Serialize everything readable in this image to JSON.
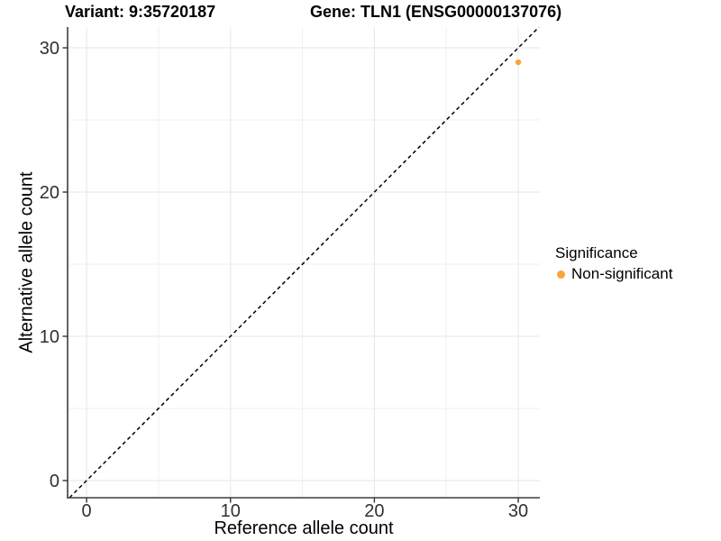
{
  "page": {
    "background": "#ffffff"
  },
  "header": {
    "title_left": "Variant: 9:35720187",
    "title_right": "Gene: TLN1 (ENSG00000137076)"
  },
  "chart_data": {
    "type": "scatter",
    "title_left": "Variant: 9:35720187",
    "title_right": "Gene: TLN1 (ENSG00000137076)",
    "xlabel": "Reference allele count",
    "ylabel": "Alternative allele count",
    "xlim": [
      -1.32,
      31.5
    ],
    "ylim": [
      -1.19,
      31.44
    ],
    "x_ticks": [
      0,
      10,
      20,
      30
    ],
    "y_ticks": [
      0,
      10,
      20,
      30
    ],
    "x_minor_ticks": [
      5,
      15,
      25
    ],
    "y_minor_ticks": [
      5,
      15,
      25
    ],
    "grid": "on",
    "points": [
      {
        "x": 30,
        "y": 29,
        "series": "Non-significant"
      }
    ],
    "reference_line": {
      "type": "identity",
      "slope": 1,
      "intercept": 0,
      "style": "dashed",
      "color": "#000000"
    },
    "legend_position": "right"
  },
  "legend": {
    "title": "Significance",
    "items": [
      {
        "label": "Non-significant",
        "color": "#FAA43A",
        "marker": "circle"
      }
    ]
  },
  "colors": {
    "point": "#FAA43A",
    "grid_major": "#E6E6E6",
    "grid_minor": "#EFEFEF",
    "axis_line": "#3d3d3d",
    "tick_mark": "#333333",
    "tick_label": "#303030",
    "dashed_line": "#000000",
    "background": "#ffffff"
  }
}
